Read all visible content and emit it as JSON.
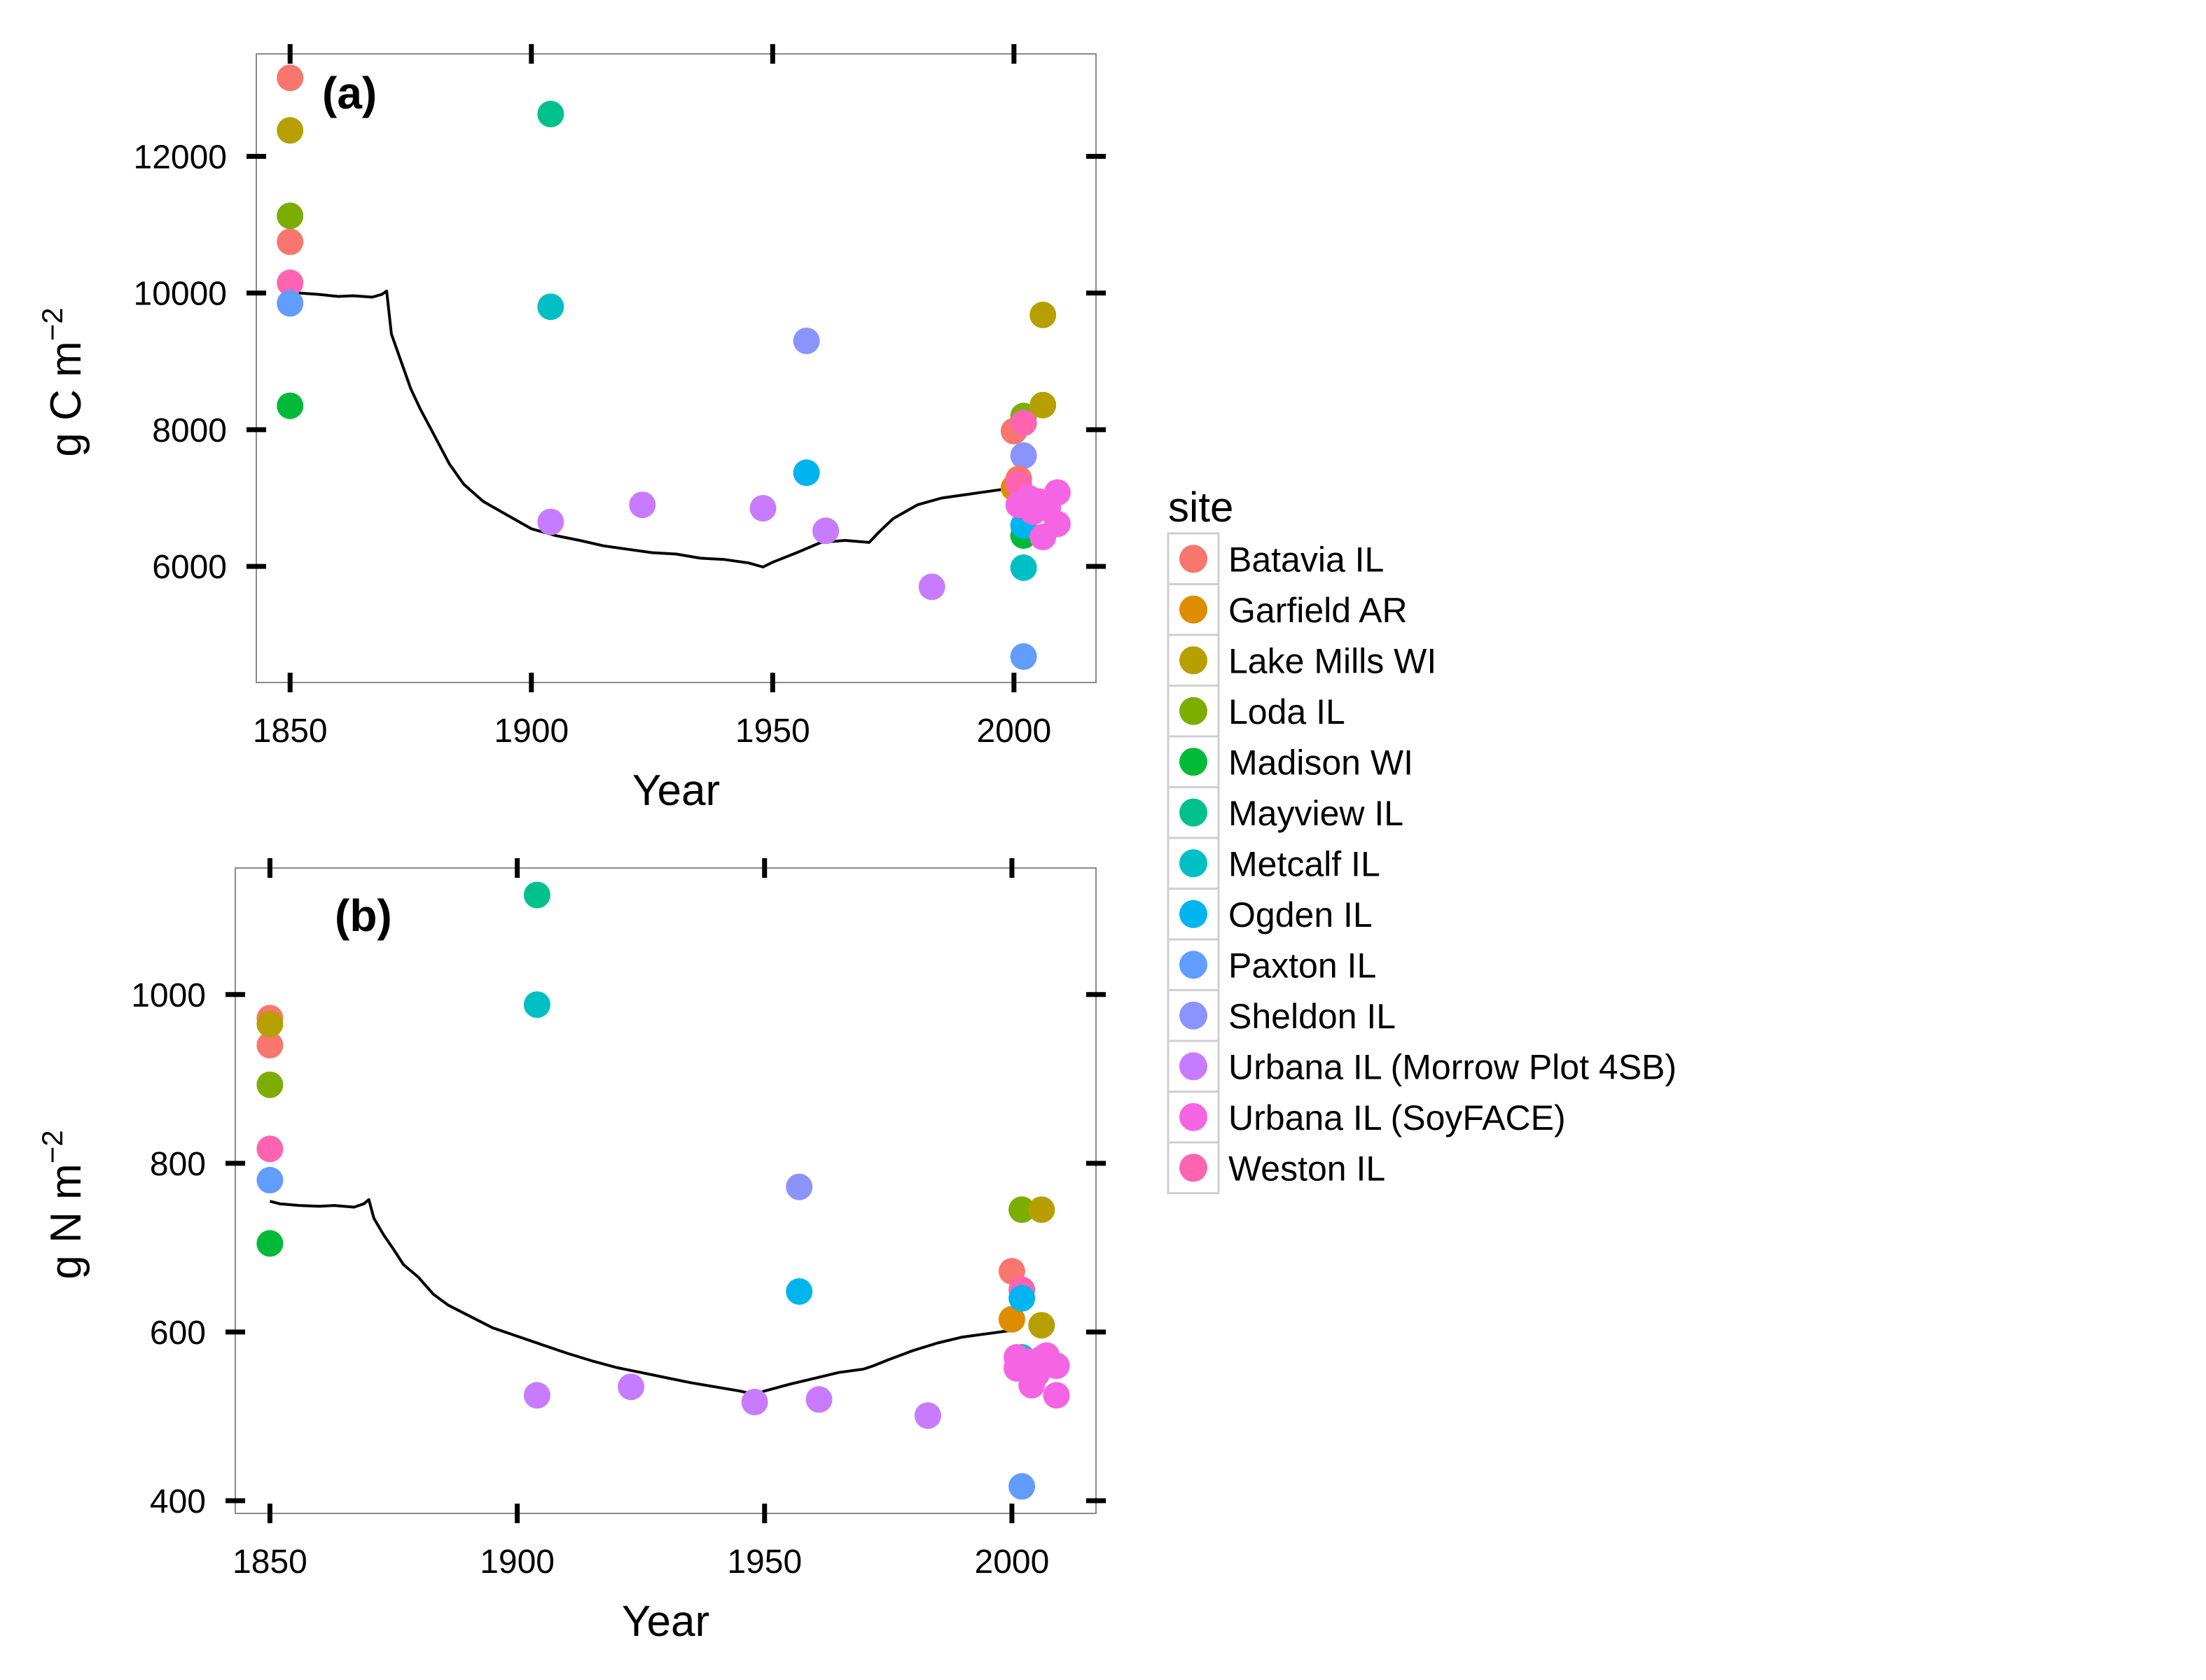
{
  "chart_data": [
    {
      "type": "scatter",
      "tag": "(a)",
      "xlabel": "Year",
      "ylabel_main": "g C m",
      "ylabel_sup": "−2",
      "xlim": [
        1843,
        2017
      ],
      "ylim": [
        4300,
        13500
      ],
      "xticks": [
        1850,
        1900,
        1950,
        2000
      ],
      "yticks": [
        6000,
        8000,
        10000,
        12000
      ],
      "model_line": {
        "x": [
          1850,
          1852,
          1856,
          1860,
          1863,
          1867,
          1869,
          1870,
          1871,
          1873,
          1875,
          1877,
          1880,
          1883,
          1886,
          1890,
          1895,
          1900,
          1905,
          1910,
          1915,
          1920,
          1925,
          1930,
          1935,
          1940,
          1945,
          1948,
          1950,
          1955,
          1960,
          1965,
          1970,
          1972,
          1975,
          1980,
          1985,
          1990,
          1995,
          2000,
          2002
        ],
        "y": [
          10000,
          10000,
          9980,
          9950,
          9960,
          9940,
          9980,
          10030,
          9400,
          9000,
          8600,
          8300,
          7900,
          7500,
          7200,
          6950,
          6750,
          6550,
          6450,
          6380,
          6300,
          6250,
          6200,
          6180,
          6120,
          6100,
          6050,
          5990,
          6060,
          6200,
          6350,
          6380,
          6350,
          6500,
          6700,
          6900,
          7000,
          7050,
          7100,
          7150,
          7350
        ]
      },
      "points": [
        {
          "site": "Batavia IL",
          "x": 1850,
          "y": 13150
        },
        {
          "site": "Batavia IL",
          "x": 1850,
          "y": 10750
        },
        {
          "site": "Lake Mills WI",
          "x": 1850,
          "y": 12380
        },
        {
          "site": "Loda IL",
          "x": 1850,
          "y": 11130
        },
        {
          "site": "Weston IL",
          "x": 1850,
          "y": 10150
        },
        {
          "site": "Paxton IL",
          "x": 1850,
          "y": 9850
        },
        {
          "site": "Madison WI",
          "x": 1850,
          "y": 8350
        },
        {
          "site": "Mayview IL",
          "x": 1904,
          "y": 12620
        },
        {
          "site": "Metcalf IL",
          "x": 1904,
          "y": 9800
        },
        {
          "site": "Urbana IL (Morrow Plot 4SB)",
          "x": 1904,
          "y": 6650
        },
        {
          "site": "Urbana IL (Morrow Plot 4SB)",
          "x": 1923,
          "y": 6900
        },
        {
          "site": "Urbana IL (Morrow Plot 4SB)",
          "x": 1948,
          "y": 6850
        },
        {
          "site": "Sheldon IL",
          "x": 1957,
          "y": 9300
        },
        {
          "site": "Ogden IL",
          "x": 1957,
          "y": 7370
        },
        {
          "site": "Urbana IL (Morrow Plot 4SB)",
          "x": 1961,
          "y": 6520
        },
        {
          "site": "Urbana IL (Morrow Plot 4SB)",
          "x": 1983,
          "y": 5700
        },
        {
          "site": "Batavia IL",
          "x": 2000,
          "y": 7980
        },
        {
          "site": "Garfield AR",
          "x": 2000,
          "y": 7150
        },
        {
          "site": "Loda IL",
          "x": 2002,
          "y": 8200
        },
        {
          "site": "Weston IL",
          "x": 2002,
          "y": 8100
        },
        {
          "site": "Sheldon IL",
          "x": 2002,
          "y": 7620
        },
        {
          "site": "Batavia IL",
          "x": 2001,
          "y": 7280
        },
        {
          "site": "Weston IL",
          "x": 2001,
          "y": 7200
        },
        {
          "site": "Madison WI",
          "x": 2002,
          "y": 6450
        },
        {
          "site": "Ogden IL",
          "x": 2002,
          "y": 6600
        },
        {
          "site": "Metcalf IL",
          "x": 2002,
          "y": 5980
        },
        {
          "site": "Paxton IL",
          "x": 2002,
          "y": 4680
        },
        {
          "site": "Lake Mills WI",
          "x": 2006,
          "y": 9680
        },
        {
          "site": "Lake Mills WI",
          "x": 2006,
          "y": 8360
        },
        {
          "site": "Urbana IL (SoyFACE)",
          "x": 2001,
          "y": 6900
        },
        {
          "site": "Urbana IL (SoyFACE)",
          "x": 2003,
          "y": 7000
        },
        {
          "site": "Urbana IL (SoyFACE)",
          "x": 2004,
          "y": 6800
        },
        {
          "site": "Urbana IL (SoyFACE)",
          "x": 2005,
          "y": 6950
        },
        {
          "site": "Urbana IL (SoyFACE)",
          "x": 2006,
          "y": 6430
        },
        {
          "site": "Urbana IL (SoyFACE)",
          "x": 2007,
          "y": 6850
        },
        {
          "site": "Urbana IL (SoyFACE)",
          "x": 2009,
          "y": 7080
        },
        {
          "site": "Urbana IL (SoyFACE)",
          "x": 2009,
          "y": 6620
        }
      ]
    },
    {
      "type": "scatter",
      "tag": "(b)",
      "xlabel": "Year",
      "ylabel_main": "g N m",
      "ylabel_sup": "−2",
      "xlim": [
        1843,
        2017
      ],
      "ylim": [
        385,
        1150
      ],
      "xticks": [
        1850,
        1900,
        1950,
        2000
      ],
      "yticks": [
        400,
        600,
        800,
        1000
      ],
      "model_line": {
        "x": [
          1850,
          1852,
          1856,
          1860,
          1863,
          1867,
          1869,
          1870,
          1871,
          1873,
          1875,
          1877,
          1880,
          1883,
          1886,
          1890,
          1895,
          1900,
          1905,
          1910,
          1915,
          1920,
          1925,
          1930,
          1935,
          1940,
          1945,
          1948,
          1950,
          1955,
          1960,
          1965,
          1970,
          1972,
          1975,
          1980,
          1985,
          1990,
          1995,
          2000,
          2002
        ],
        "y": [
          755,
          752,
          750,
          749,
          750,
          748,
          752,
          757,
          735,
          715,
          698,
          680,
          665,
          645,
          632,
          620,
          605,
          595,
          585,
          575,
          566,
          558,
          552,
          546,
          540,
          535,
          530,
          526,
          530,
          538,
          545,
          552,
          556,
          560,
          567,
          578,
          587,
          594,
          598,
          602,
          608
        ]
      },
      "points": [
        {
          "site": "Batavia IL",
          "x": 1850,
          "y": 972
        },
        {
          "site": "Batavia IL",
          "x": 1850,
          "y": 940
        },
        {
          "site": "Lake Mills WI",
          "x": 1850,
          "y": 965
        },
        {
          "site": "Loda IL",
          "x": 1850,
          "y": 893
        },
        {
          "site": "Weston IL",
          "x": 1850,
          "y": 817
        },
        {
          "site": "Paxton IL",
          "x": 1850,
          "y": 780
        },
        {
          "site": "Madison WI",
          "x": 1850,
          "y": 705
        },
        {
          "site": "Mayview IL",
          "x": 1904,
          "y": 1118
        },
        {
          "site": "Metcalf IL",
          "x": 1904,
          "y": 988
        },
        {
          "site": "Urbana IL (Morrow Plot 4SB)",
          "x": 1904,
          "y": 525
        },
        {
          "site": "Urbana IL (Morrow Plot 4SB)",
          "x": 1923,
          "y": 535
        },
        {
          "site": "Urbana IL (Morrow Plot 4SB)",
          "x": 1948,
          "y": 517
        },
        {
          "site": "Sheldon IL",
          "x": 1957,
          "y": 772
        },
        {
          "site": "Ogden IL",
          "x": 1957,
          "y": 648
        },
        {
          "site": "Urbana IL (Morrow Plot 4SB)",
          "x": 1961,
          "y": 520
        },
        {
          "site": "Urbana IL (Morrow Plot 4SB)",
          "x": 1983,
          "y": 501
        },
        {
          "site": "Batavia IL",
          "x": 2000,
          "y": 672
        },
        {
          "site": "Garfield AR",
          "x": 2000,
          "y": 615
        },
        {
          "site": "Loda IL",
          "x": 2002,
          "y": 745
        },
        {
          "site": "Weston IL",
          "x": 2002,
          "y": 650
        },
        {
          "site": "Ogden IL",
          "x": 2002,
          "y": 640
        },
        {
          "site": "Metcalf IL",
          "x": 2002,
          "y": 570
        },
        {
          "site": "Paxton IL",
          "x": 2002,
          "y": 417
        },
        {
          "site": "Lake Mills WI",
          "x": 2006,
          "y": 745
        },
        {
          "site": "Lake Mills WI",
          "x": 2006,
          "y": 608
        },
        {
          "site": "Urbana IL (SoyFACE)",
          "x": 2001,
          "y": 570
        },
        {
          "site": "Urbana IL (SoyFACE)",
          "x": 2001,
          "y": 557
        },
        {
          "site": "Urbana IL (SoyFACE)",
          "x": 2003,
          "y": 565
        },
        {
          "site": "Urbana IL (SoyFACE)",
          "x": 2004,
          "y": 537
        },
        {
          "site": "Urbana IL (SoyFACE)",
          "x": 2005,
          "y": 550
        },
        {
          "site": "Urbana IL (SoyFACE)",
          "x": 2006,
          "y": 568
        },
        {
          "site": "Urbana IL (SoyFACE)",
          "x": 2007,
          "y": 572
        },
        {
          "site": "Urbana IL (SoyFACE)",
          "x": 2009,
          "y": 560
        },
        {
          "site": "Urbana IL (SoyFACE)",
          "x": 2009,
          "y": 525
        }
      ]
    }
  ],
  "legend": {
    "title": "site",
    "placement": "right",
    "items": [
      {
        "label": "Batavia IL",
        "color": "#F8766D"
      },
      {
        "label": "Garfield AR",
        "color": "#DE8C00"
      },
      {
        "label": "Lake Mills WI",
        "color": "#B79F00"
      },
      {
        "label": "Loda IL",
        "color": "#7CAE00"
      },
      {
        "label": "Madison WI",
        "color": "#00BA38"
      },
      {
        "label": "Mayview IL",
        "color": "#00C08B"
      },
      {
        "label": "Metcalf IL",
        "color": "#00BFC4"
      },
      {
        "label": "Ogden IL",
        "color": "#00B4F0"
      },
      {
        "label": "Paxton IL",
        "color": "#619CFF"
      },
      {
        "label": "Sheldon IL",
        "color": "#8B93FF"
      },
      {
        "label": "Urbana IL (Morrow Plot 4SB)",
        "color": "#C77CFF"
      },
      {
        "label": "Urbana IL (SoyFACE)",
        "color": "#F564E3"
      },
      {
        "label": "Weston IL",
        "color": "#FF64B0"
      }
    ]
  }
}
